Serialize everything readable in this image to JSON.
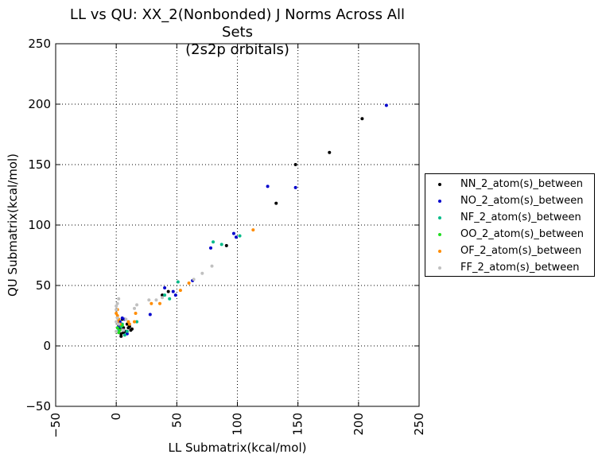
{
  "chart_data": {
    "type": "scatter",
    "title": "LL vs QU: XX_2(Nonbonded) J Norms Across All Sets",
    "subtitle": "(2s2p orbitals)",
    "xlabel": "LL Submatrix(kcal/mol)",
    "ylabel": "QU Submatrix(kcal/mol)",
    "xlim": [
      -50,
      250
    ],
    "ylim": [
      -50,
      250
    ],
    "xticks": [
      "−50",
      "0",
      "50",
      "100",
      "150",
      "200",
      "250"
    ],
    "yticks": [
      "−50",
      "0",
      "50",
      "100",
      "150",
      "200",
      "250"
    ],
    "grid": true,
    "legend_position": "outside-right",
    "series": [
      {
        "name": "NN_2_atom(s)_between",
        "color": "#000000",
        "points": [
          [
            203,
            188
          ],
          [
            176,
            160
          ],
          [
            148,
            150
          ],
          [
            132,
            118
          ],
          [
            91,
            83
          ],
          [
            43,
            45
          ],
          [
            38,
            42
          ],
          [
            12,
            13
          ],
          [
            10,
            15
          ],
          [
            8,
            12
          ],
          [
            6,
            11
          ],
          [
            4,
            8
          ],
          [
            3,
            14
          ],
          [
            2,
            17
          ],
          [
            5,
            22
          ],
          [
            6,
            15
          ],
          [
            9,
            18
          ],
          [
            11,
            16
          ],
          [
            13,
            14
          ],
          [
            4,
            10
          ]
        ]
      },
      {
        "name": "NO_2_atom(s)_between",
        "color": "#0000cc",
        "points": [
          [
            223,
            199
          ],
          [
            125,
            132
          ],
          [
            148,
            131
          ],
          [
            97,
            93
          ],
          [
            99,
            90
          ],
          [
            78,
            81
          ],
          [
            63,
            54
          ],
          [
            40,
            48
          ],
          [
            47,
            45
          ],
          [
            49,
            42
          ],
          [
            28,
            26
          ],
          [
            5,
            23
          ],
          [
            7,
            22
          ],
          [
            3,
            20
          ],
          [
            6,
            13
          ],
          [
            9,
            10
          ],
          [
            2,
            16
          ],
          [
            4,
            18
          ]
        ]
      },
      {
        "name": "NF_2_atom(s)_between",
        "color": "#00bb88",
        "points": [
          [
            102,
            91
          ],
          [
            80,
            86
          ],
          [
            87,
            84
          ],
          [
            51,
            53
          ],
          [
            44,
            39
          ],
          [
            40,
            42
          ],
          [
            17,
            20
          ],
          [
            7,
            9
          ],
          [
            4,
            16
          ],
          [
            2,
            13
          ],
          [
            5,
            18
          ],
          [
            9,
            12
          ]
        ]
      },
      {
        "name": "OO_2_atom(s)_between",
        "color": "#22dd22",
        "points": [
          [
            1,
            15
          ],
          [
            3,
            13
          ],
          [
            2,
            11
          ],
          [
            5,
            17
          ]
        ]
      },
      {
        "name": "OF_2_atom(s)_between",
        "color": "#ff8c00",
        "points": [
          [
            113,
            96
          ],
          [
            60,
            52
          ],
          [
            53,
            46
          ],
          [
            36,
            35
          ],
          [
            29,
            35
          ],
          [
            16,
            27
          ],
          [
            15,
            20
          ],
          [
            10,
            20
          ],
          [
            1,
            30
          ],
          [
            0,
            27
          ],
          [
            1,
            25
          ],
          [
            2,
            22
          ],
          [
            1,
            20
          ],
          [
            3,
            18
          ],
          [
            11,
            18
          ]
        ]
      },
      {
        "name": "FF_2_atom(s)_between",
        "color": "#c0c0c0",
        "points": [
          [
            79,
            66
          ],
          [
            71,
            60
          ],
          [
            64,
            55
          ],
          [
            38,
            40
          ],
          [
            33,
            38
          ],
          [
            27,
            38
          ],
          [
            17,
            34
          ],
          [
            15,
            31
          ],
          [
            8,
            22
          ],
          [
            2,
            39
          ],
          [
            1,
            35
          ],
          [
            0,
            33
          ],
          [
            0,
            30
          ],
          [
            1,
            23
          ],
          [
            0,
            20
          ],
          [
            2,
            18
          ],
          [
            6,
            13
          ],
          [
            0,
            12
          ]
        ]
      }
    ]
  }
}
